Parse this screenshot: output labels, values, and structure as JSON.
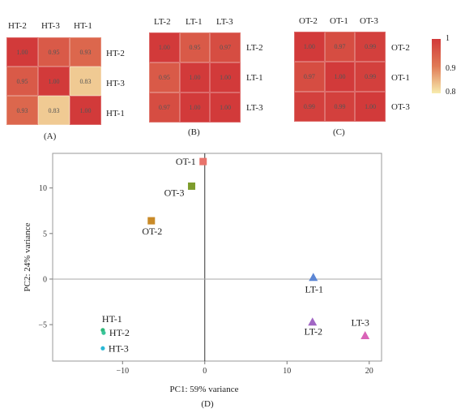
{
  "chart_data": [
    {
      "type": "heatmap",
      "caption": "(A)",
      "labels": [
        "HT-2",
        "HT-3",
        "HT-1"
      ],
      "values": [
        [
          1.0,
          0.95,
          0.93
        ],
        [
          0.95,
          1.0,
          0.83
        ],
        [
          0.93,
          0.83,
          1.0
        ]
      ],
      "cell_text": [
        [
          "1.00",
          "0.95",
          "0.93"
        ],
        [
          "0.95",
          "1.00",
          "0.83"
        ],
        [
          "0.93",
          "0.83",
          "1.00"
        ]
      ]
    },
    {
      "type": "heatmap",
      "caption": "(B)",
      "labels": [
        "LT-2",
        "LT-1",
        "LT-3"
      ],
      "values": [
        [
          1.0,
          0.95,
          0.97
        ],
        [
          0.95,
          1.0,
          1.0
        ],
        [
          0.97,
          1.0,
          1.0
        ]
      ],
      "cell_text": [
        [
          "1.00",
          "0.95",
          "0.97"
        ],
        [
          "0.95",
          "1.00",
          "1.00"
        ],
        [
          "0.97",
          "1.00",
          "1.00"
        ]
      ]
    },
    {
      "type": "heatmap",
      "caption": "(C)",
      "labels": [
        "OT-2",
        "OT-1",
        "OT-3"
      ],
      "values": [
        [
          1.0,
          0.97,
          0.99
        ],
        [
          0.97,
          1.0,
          0.99
        ],
        [
          0.99,
          0.99,
          1.0
        ]
      ],
      "cell_text": [
        [
          "1.00",
          "0.97",
          "0.99"
        ],
        [
          "0.97",
          "1.00",
          "0.99"
        ],
        [
          "0.99",
          "0.99",
          "1.00"
        ]
      ]
    },
    {
      "type": "scatter",
      "caption": "(D)",
      "xlabel": "PC1: 59% variance",
      "ylabel": "PC2: 24% variance",
      "xlim": [
        -18.5,
        21.5
      ],
      "ylim": [
        -9.0,
        13.8
      ],
      "xticks": [
        -10,
        0,
        10,
        20
      ],
      "yticks": [
        -5,
        0,
        5,
        10
      ],
      "points": [
        {
          "label": "OT-1",
          "x": -0.2,
          "y": 12.9,
          "shape": "square",
          "color": "#e8736b"
        },
        {
          "label": "OT-3",
          "x": -1.6,
          "y": 10.2,
          "shape": "square",
          "color": "#7d9c2c"
        },
        {
          "label": "OT-2",
          "x": -6.5,
          "y": 6.4,
          "shape": "square",
          "color": "#c98a28"
        },
        {
          "label": "LT-1",
          "x": 13.2,
          "y": 0.2,
          "shape": "triangle",
          "color": "#5c86d4"
        },
        {
          "label": "LT-2",
          "x": 13.1,
          "y": -4.7,
          "shape": "triangle",
          "color": "#a166c4"
        },
        {
          "label": "LT-3",
          "x": 19.5,
          "y": -6.2,
          "shape": "triangle",
          "color": "#d963b8"
        },
        {
          "label": "HT-1",
          "x": -12.4,
          "y": -5.6,
          "shape": "circle",
          "color": "#2fb87a"
        },
        {
          "label": "HT-2",
          "x": -12.3,
          "y": -5.9,
          "shape": "circle",
          "color": "#38c49a"
        },
        {
          "label": "HT-3",
          "x": -12.4,
          "y": -7.6,
          "shape": "circle",
          "color": "#2ab8d6"
        }
      ]
    }
  ],
  "legend": {
    "ticks": [
      "1",
      "0.9",
      "0.8"
    ],
    "colors": [
      "#d23a3a",
      "#e07a55",
      "#f7ecae"
    ]
  }
}
